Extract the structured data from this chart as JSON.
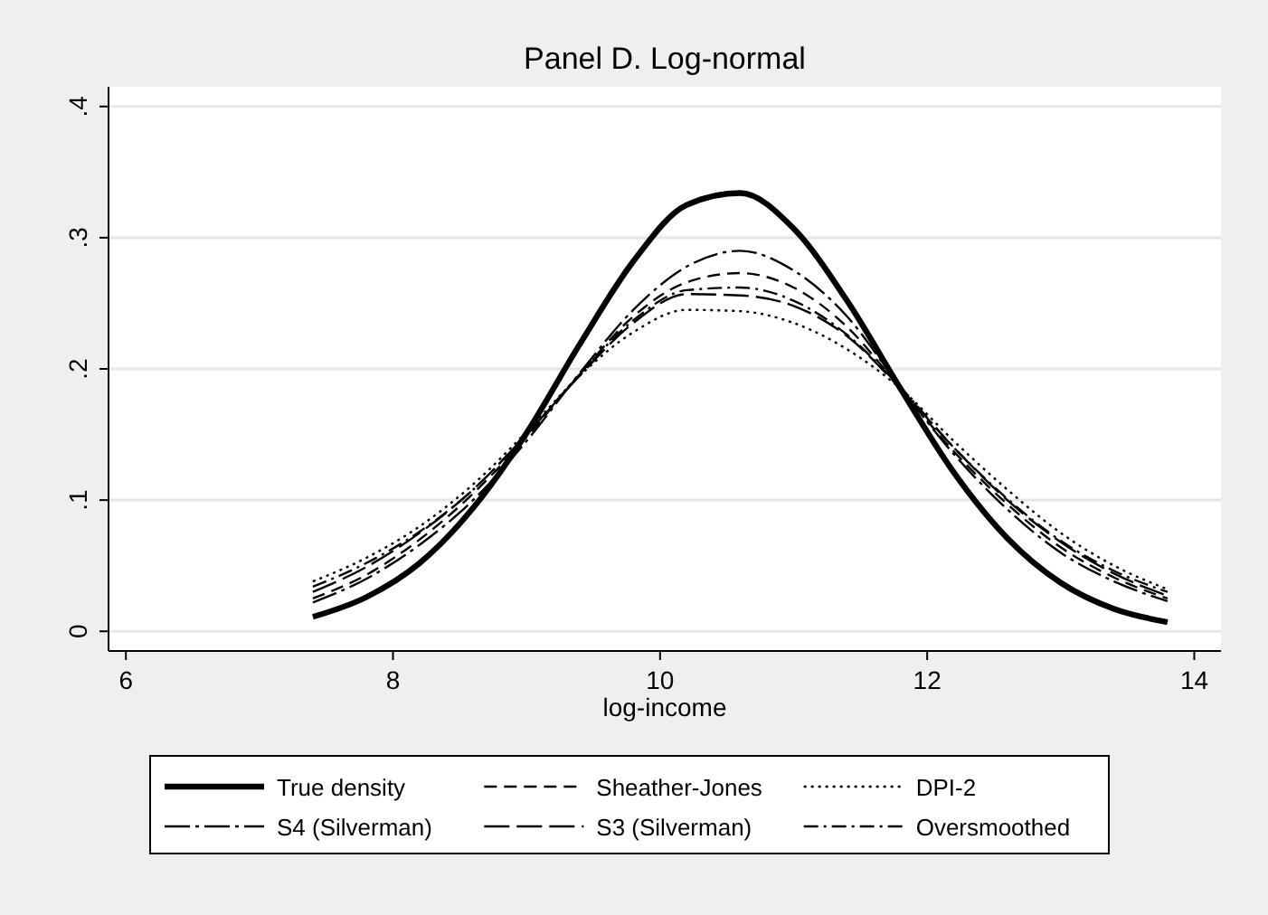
{
  "chart_data": {
    "type": "line",
    "title": "Panel D. Log-normal",
    "xlabel": "log-income",
    "x": [
      7.4,
      7.8,
      8.2,
      8.6,
      9.0,
      9.4,
      9.8,
      10.2,
      10.6,
      11.0,
      11.4,
      11.8,
      12.2,
      12.6,
      13.0,
      13.4,
      13.8
    ],
    "xlim": [
      5.87,
      14.2
    ],
    "xticks": [
      6,
      8,
      10,
      12,
      14
    ],
    "ylim": [
      -0.015,
      0.415
    ],
    "yticks": [
      {
        "value": 0,
        "label": "0"
      },
      {
        "value": 0.1,
        "label": ".1"
      },
      {
        "value": 0.2,
        "label": ".2"
      },
      {
        "value": 0.3,
        "label": ".3"
      },
      {
        "value": 0.4,
        "label": ".4"
      }
    ],
    "grid": "y",
    "legend": "bottom",
    "marker": "none",
    "series": [
      {
        "name": "True density",
        "color": "#000000",
        "line_style": "solid",
        "values": [
          0.011,
          0.026,
          0.052,
          0.094,
          0.151,
          0.219,
          0.282,
          0.325,
          0.334,
          0.307,
          0.252,
          0.185,
          0.121,
          0.071,
          0.037,
          0.017,
          0.007
        ]
      },
      {
        "name": "Sheather-Jones",
        "color": "#000000",
        "line_style": "dashed",
        "values": [
          0.025,
          0.043,
          0.07,
          0.105,
          0.148,
          0.196,
          0.24,
          0.266,
          0.273,
          0.262,
          0.232,
          0.185,
          0.137,
          0.097,
          0.064,
          0.041,
          0.025
        ]
      },
      {
        "name": "DPI-2",
        "color": "#000000",
        "line_style": "dotted",
        "values": [
          0.038,
          0.056,
          0.08,
          0.112,
          0.152,
          0.195,
          0.228,
          0.245,
          0.244,
          0.235,
          0.215,
          0.185,
          0.145,
          0.108,
          0.075,
          0.05,
          0.032
        ]
      },
      {
        "name": "S4 (Silverman)",
        "color": "#000000",
        "line_style": "longdashdot",
        "values": [
          0.022,
          0.04,
          0.066,
          0.1,
          0.145,
          0.197,
          0.245,
          0.278,
          0.29,
          0.275,
          0.24,
          0.186,
          0.135,
          0.093,
          0.06,
          0.038,
          0.023
        ]
      },
      {
        "name": "S3 (Silverman)",
        "color": "#000000",
        "line_style": "longdash",
        "values": [
          0.03,
          0.049,
          0.075,
          0.108,
          0.15,
          0.195,
          0.235,
          0.257,
          0.256,
          0.248,
          0.225,
          0.185,
          0.14,
          0.1,
          0.068,
          0.044,
          0.027
        ]
      },
      {
        "name": "Oversmoothed",
        "color": "#000000",
        "line_style": "dashdot",
        "values": [
          0.034,
          0.052,
          0.076,
          0.108,
          0.15,
          0.196,
          0.237,
          0.26,
          0.262,
          0.252,
          0.226,
          0.186,
          0.14,
          0.101,
          0.069,
          0.046,
          0.03
        ]
      }
    ]
  }
}
